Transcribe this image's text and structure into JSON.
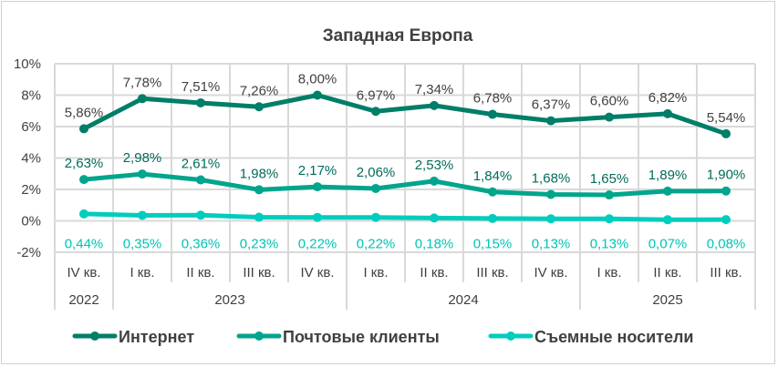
{
  "chart_data": {
    "type": "line",
    "title": "Западная Европа",
    "xlabel": "",
    "ylabel": "",
    "ylim": [
      -2,
      10
    ],
    "yticks": [
      "10%",
      "8%",
      "6%",
      "4%",
      "2%",
      "0%",
      "-2%"
    ],
    "ytick_values": [
      10,
      8,
      6,
      4,
      2,
      0,
      -2
    ],
    "grid": true,
    "legend_position": "bottom",
    "categories": [
      "IV кв.",
      "I кв.",
      "II кв.",
      "III кв.",
      "IV кв.",
      "I кв.",
      "II кв.",
      "III кв.",
      "IV кв.",
      "I кв.",
      "II кв.",
      "III кв."
    ],
    "year_groups": [
      {
        "label": "2022",
        "start": 0,
        "end": 0
      },
      {
        "label": "2023",
        "start": 1,
        "end": 4
      },
      {
        "label": "2024",
        "start": 5,
        "end": 8
      },
      {
        "label": "2025",
        "start": 9,
        "end": 11
      }
    ],
    "series": [
      {
        "name": "Интернет",
        "color": "#007e68",
        "label_color": "#404040",
        "label_pos": "above",
        "values": [
          5.86,
          7.78,
          7.51,
          7.26,
          8.0,
          6.97,
          7.34,
          6.78,
          6.37,
          6.6,
          6.82,
          5.54
        ],
        "labels": [
          "5,86%",
          "7,78%",
          "7,51%",
          "7,26%",
          "8,00%",
          "6,97%",
          "7,34%",
          "6,78%",
          "6,37%",
          "6,60%",
          "6,82%",
          "5,54%"
        ]
      },
      {
        "name": "Почтовые клиенты",
        "color": "#00a58c",
        "label_color": "#006b5a",
        "label_pos": "above",
        "values": [
          2.63,
          2.98,
          2.61,
          1.98,
          2.17,
          2.06,
          2.53,
          1.84,
          1.68,
          1.65,
          1.89,
          1.9
        ],
        "labels": [
          "2,63%",
          "2,98%",
          "2,61%",
          "1,98%",
          "2,17%",
          "2,06%",
          "2,53%",
          "1,84%",
          "1,68%",
          "1,65%",
          "1,89%",
          "1,90%"
        ]
      },
      {
        "name": "Съемные носители",
        "color": "#00cdbd",
        "label_color": "#00c4b4",
        "label_pos": "below",
        "values": [
          0.44,
          0.35,
          0.36,
          0.23,
          0.22,
          0.22,
          0.18,
          0.15,
          0.13,
          0.13,
          0.07,
          0.08
        ],
        "labels": [
          "0,44%",
          "0,35%",
          "0,36%",
          "0,23%",
          "0,22%",
          "0,22%",
          "0,18%",
          "0,15%",
          "0,13%",
          "0,13%",
          "0,07%",
          "0,08%"
        ]
      }
    ]
  }
}
